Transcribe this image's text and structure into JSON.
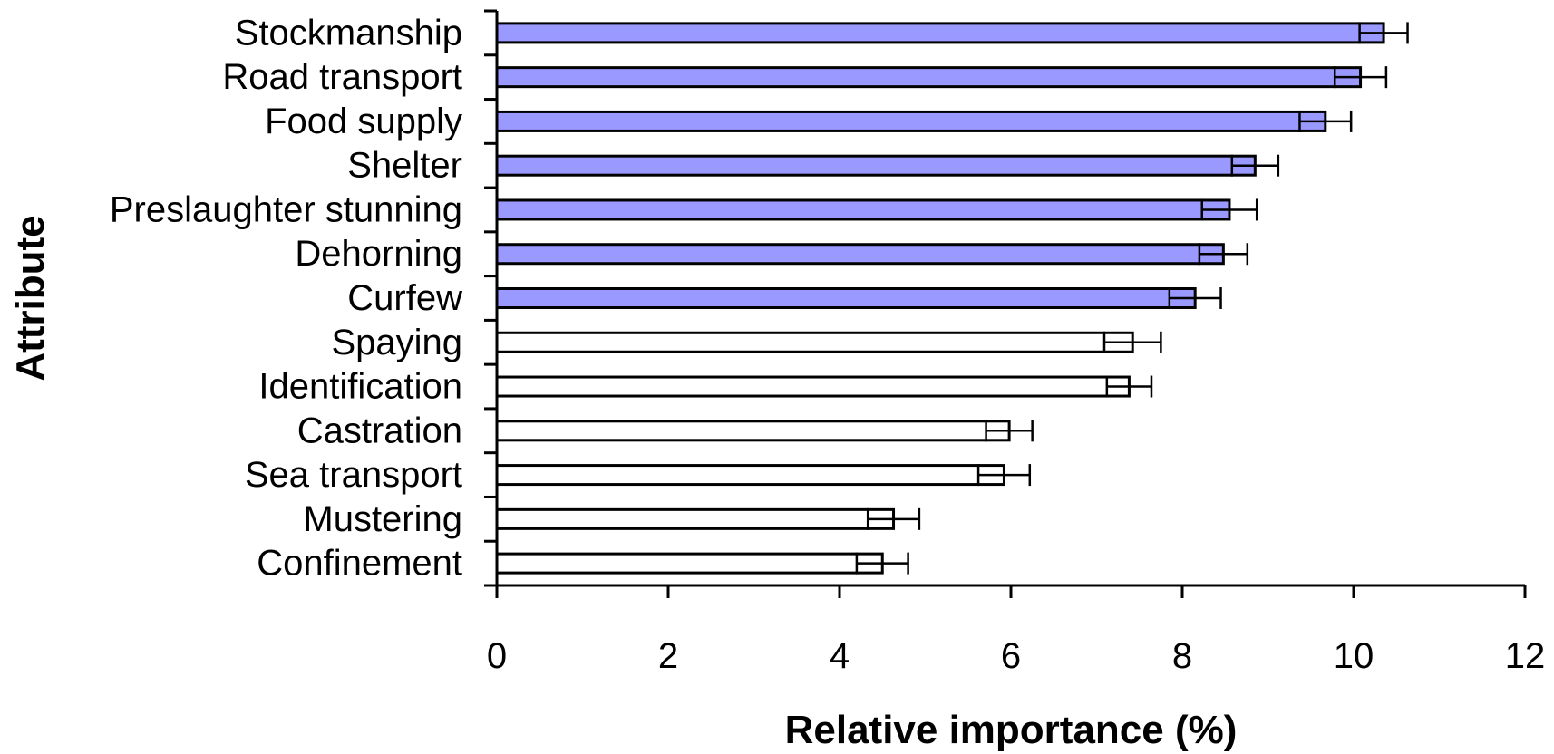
{
  "chart_data": {
    "type": "bar",
    "orientation": "horizontal",
    "xlabel": "Relative importance (%)",
    "ylabel": "Attribute",
    "xlim": [
      0,
      12
    ],
    "xticks": [
      "0",
      "2",
      "4",
      "6",
      "8",
      "10",
      "12"
    ],
    "grid": false,
    "categories": [
      "Stockmanship",
      "Road transport",
      "Food supply",
      "Shelter",
      "Preslaughter stunning",
      "Dehorning",
      "Curfew",
      "Spaying",
      "Identification",
      "Castration",
      "Sea transport",
      "Mustering",
      "Confinement"
    ],
    "values": [
      10.35,
      10.08,
      9.67,
      8.85,
      8.55,
      8.48,
      8.15,
      7.42,
      7.38,
      5.98,
      5.92,
      4.63,
      4.5
    ],
    "error": [
      0.28,
      0.3,
      0.3,
      0.27,
      0.32,
      0.28,
      0.3,
      0.33,
      0.26,
      0.27,
      0.3,
      0.3,
      0.3
    ],
    "highlighted": [
      true,
      true,
      true,
      true,
      true,
      true,
      true,
      false,
      false,
      false,
      false,
      false,
      false
    ],
    "colors": {
      "highlight": "#9999ff",
      "plain": "#ffffff",
      "stroke": "#000000"
    }
  }
}
